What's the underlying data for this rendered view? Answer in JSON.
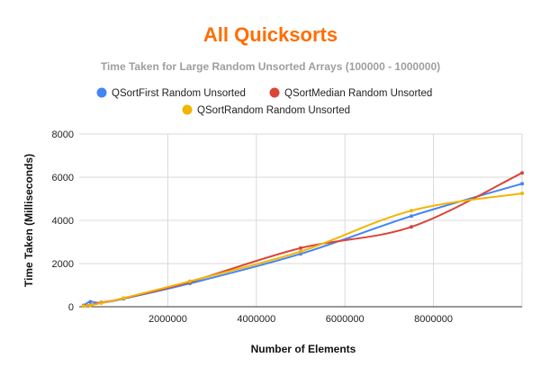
{
  "chart_data": {
    "type": "line",
    "title": "All Quicksorts",
    "subtitle": "Time Taken for Large Random Unsorted Arrays (100000 - 1000000)",
    "xlabel": "Number of Elements",
    "ylabel": "Time Taken (Milliseconds)",
    "xlim": [
      0,
      10000000
    ],
    "ylim": [
      0,
      8000
    ],
    "x_ticks": [
      2000000,
      4000000,
      6000000,
      8000000
    ],
    "x_tick_labels": [
      "2000000",
      "4000000",
      "6000000",
      "8000000"
    ],
    "y_ticks": [
      0,
      2000,
      4000,
      6000,
      8000
    ],
    "y_tick_labels": [
      "0",
      "2000",
      "4000",
      "6000",
      "8000"
    ],
    "grid": true,
    "legend_position": "top",
    "series": [
      {
        "name": "QSortFirst Random Unsorted",
        "color": "#4285f4",
        "x": [
          100000,
          250000,
          500000,
          1000000,
          2500000,
          5000000,
          7500000,
          10000000
        ],
        "y": [
          60,
          230,
          180,
          370,
          1080,
          2450,
          4200,
          5700
        ]
      },
      {
        "name": "QSortMedian Random Unsorted",
        "color": "#db4437",
        "x": [
          100000,
          250000,
          500000,
          1000000,
          2500000,
          5000000,
          7500000,
          10000000
        ],
        "y": [
          40,
          80,
          200,
          390,
          1150,
          2720,
          3700,
          6200
        ]
      },
      {
        "name": "QSortRandom Random Unsorted",
        "color": "#f4b400",
        "x": [
          100000,
          250000,
          500000,
          1000000,
          2500000,
          5000000,
          7500000,
          10000000
        ],
        "y": [
          30,
          60,
          170,
          400,
          1180,
          2560,
          4450,
          5250
        ]
      }
    ]
  }
}
